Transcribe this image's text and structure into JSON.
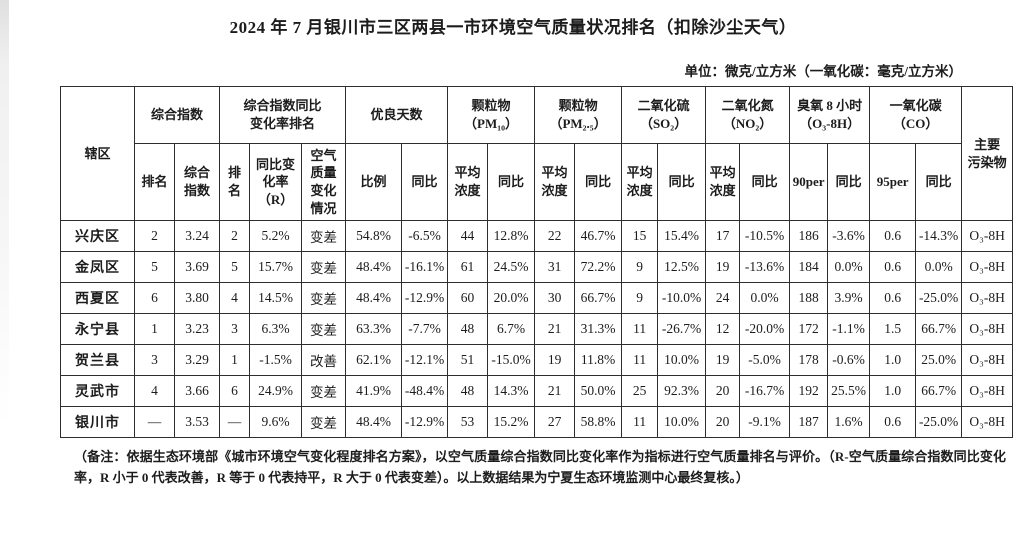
{
  "title": "2024 年 7 月银川市三区两县一市环境空气质量状况排名（扣除沙尘天气）",
  "unit_note": "单位：微克/立方米（一氧化碳：毫克/立方米）",
  "table": {
    "group_headers": [
      {
        "label": "辖区",
        "rowspan": 2
      },
      {
        "label": "综合指数",
        "colspan": 2
      },
      {
        "label": "综合指数同比\n变化率排名",
        "colspan": 3
      },
      {
        "label": "优良天数",
        "colspan": 2
      },
      {
        "label": "颗粒物\n（PM₁₀）",
        "colspan": 2
      },
      {
        "label": "颗粒物\n（PM₂.₅）",
        "colspan": 2
      },
      {
        "label": "二氧化硫\n（SO₂）",
        "colspan": 2
      },
      {
        "label": "二氧化氮\n（NO₂）",
        "colspan": 2
      },
      {
        "label": "臭氧 8 小时\n（O₃-8H）",
        "colspan": 2
      },
      {
        "label": "一氧化碳\n（CO）",
        "colspan": 2
      },
      {
        "label": "主要\n污染物",
        "rowspan": 2
      }
    ],
    "sub_headers": [
      "排名",
      "综合\n指数",
      "排\n名",
      "同比变\n化率\n（R）",
      "空气\n质量\n变化\n情况",
      "比例",
      "同比",
      "平均\n浓度",
      "同比",
      "平均\n浓度",
      "同比",
      "平均\n浓度",
      "同比",
      "平均\n浓度",
      "同比",
      "90per",
      "同比",
      "95per",
      "同比"
    ],
    "rows": [
      [
        "兴庆区",
        "2",
        "3.24",
        "2",
        "5.2%",
        "变差",
        "54.8%",
        "-6.5%",
        "44",
        "12.8%",
        "22",
        "46.7%",
        "15",
        "15.4%",
        "17",
        "-10.5%",
        "186",
        "-3.6%",
        "0.6",
        "-14.3%",
        "O₃-8H"
      ],
      [
        "金凤区",
        "5",
        "3.69",
        "5",
        "15.7%",
        "变差",
        "48.4%",
        "-16.1%",
        "61",
        "24.5%",
        "31",
        "72.2%",
        "9",
        "12.5%",
        "19",
        "-13.6%",
        "184",
        "0.0%",
        "0.6",
        "0.0%",
        "O₃-8H"
      ],
      [
        "西夏区",
        "6",
        "3.80",
        "4",
        "14.5%",
        "变差",
        "48.4%",
        "-12.9%",
        "60",
        "20.0%",
        "30",
        "66.7%",
        "9",
        "-10.0%",
        "24",
        "0.0%",
        "188",
        "3.9%",
        "0.6",
        "-25.0%",
        "O₃-8H"
      ],
      [
        "永宁县",
        "1",
        "3.23",
        "3",
        "6.3%",
        "变差",
        "63.3%",
        "-7.7%",
        "48",
        "6.7%",
        "21",
        "31.3%",
        "11",
        "-26.7%",
        "12",
        "-20.0%",
        "172",
        "-1.1%",
        "1.5",
        "66.7%",
        "O₃-8H"
      ],
      [
        "贺兰县",
        "3",
        "3.29",
        "1",
        "-1.5%",
        "改善",
        "62.1%",
        "-12.1%",
        "51",
        "-15.0%",
        "19",
        "11.8%",
        "11",
        "10.0%",
        "19",
        "-5.0%",
        "178",
        "-0.6%",
        "1.0",
        "25.0%",
        "O₃-8H"
      ],
      [
        "灵武市",
        "4",
        "3.66",
        "6",
        "24.9%",
        "变差",
        "41.9%",
        "-48.4%",
        "48",
        "14.3%",
        "21",
        "50.0%",
        "25",
        "92.3%",
        "20",
        "-16.7%",
        "192",
        "25.5%",
        "1.0",
        "66.7%",
        "O₃-8H"
      ],
      [
        "银川市",
        "—",
        "3.53",
        "—",
        "9.6%",
        "变差",
        "48.4%",
        "-12.9%",
        "53",
        "15.2%",
        "27",
        "58.8%",
        "11",
        "10.0%",
        "20",
        "-9.1%",
        "187",
        "1.6%",
        "0.6",
        "-25.0%",
        "O₃-8H"
      ]
    ]
  },
  "footnote": "（备注：依据生态环境部《城市环境空气变化程度排名方案》，以空气质量综合指数同比变化率作为指标进行空气质量排名与评价。（R-空气质量综合指数同比变化率，R 小于 0 代表改善，R 等于 0 代表持平，R 大于 0 代表变差）。以上数据结果为宁夏生态环境监测中心最终复核。）"
}
